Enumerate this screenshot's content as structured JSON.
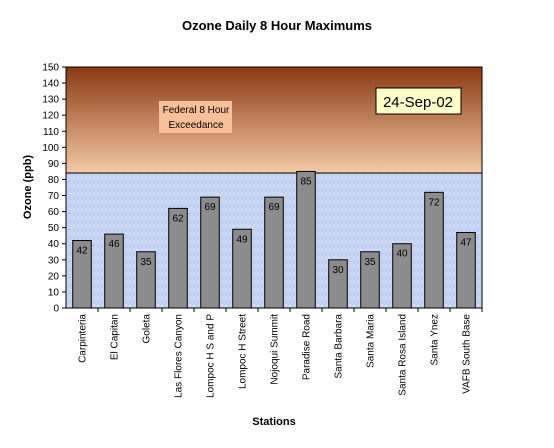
{
  "chart_data": {
    "type": "bar",
    "title": "Ozone Daily 8 Hour Maximums",
    "xlabel": "Stations",
    "ylabel": "Ozone (ppb)",
    "ylim": [
      0,
      150
    ],
    "ytick_step": 10,
    "categories": [
      "Carpinteria",
      "El Capitan",
      "Goleta",
      "Las Flores Canyon",
      "Lompoc H S and P",
      "Lompoc H Street",
      "Nojoqui Summit",
      "Paradise Road",
      "Santa Barbara",
      "Santa Maria",
      "Santa Rosa Island",
      "Santa Ynez",
      "VAFB South Base"
    ],
    "values": [
      42,
      46,
      35,
      62,
      69,
      49,
      69,
      85,
      30,
      35,
      40,
      72,
      47
    ],
    "threshold": {
      "value": 84,
      "label_line1": "Federal 8 Hour",
      "label_line2": "Exceedance"
    },
    "date_label": "24-Sep-02",
    "grid": false,
    "legend": "none",
    "colors": {
      "bar_fill": "#8c8c8c",
      "exceed_top": "#8a3a12",
      "exceed_bottom": "#f4c9a6",
      "normal_bg": "#c4d4f2",
      "date_box": "#ffffcc",
      "exceed_label_bg": "#f7c09a"
    }
  }
}
